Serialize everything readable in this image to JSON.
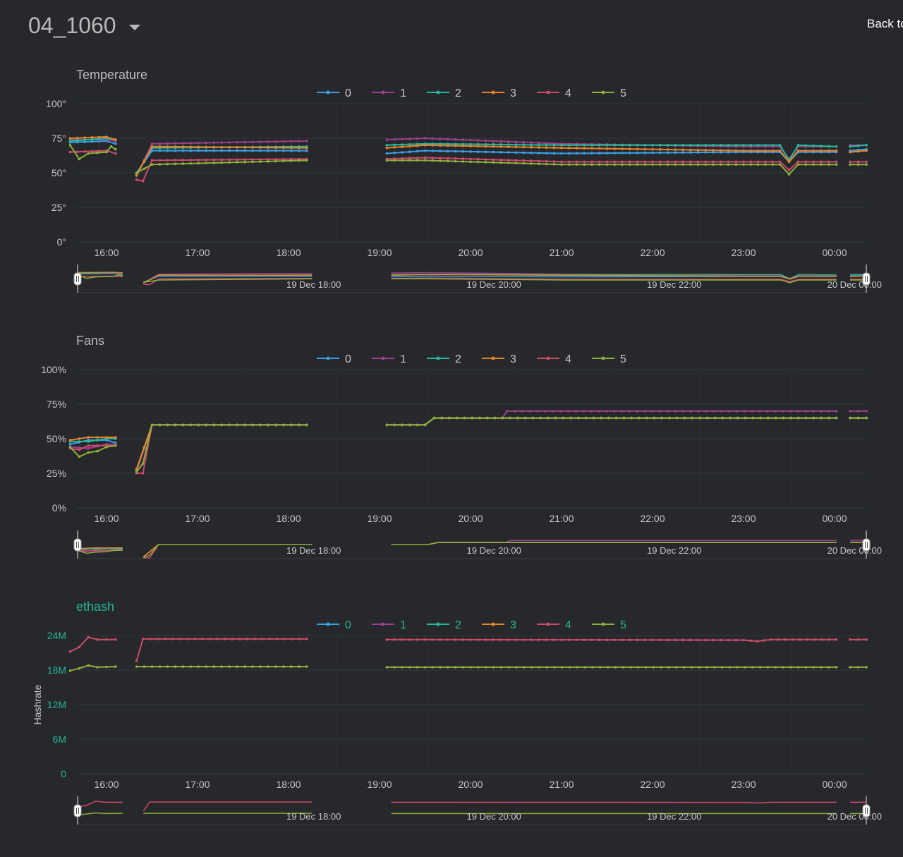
{
  "header": {
    "title": "04_1060",
    "back_label": "Back to"
  },
  "colors": {
    "background": "#26282c",
    "grid": "#33363b",
    "accent_ethash": "#26b89a",
    "title": "#b9b9b9"
  },
  "chart_data": [
    {
      "type": "line",
      "title": "Temperature",
      "xlabel": "",
      "ylabel": "",
      "y_ticks": [
        "100°",
        "75°",
        "50°",
        "25°",
        "0°"
      ],
      "ylim": [
        0,
        100
      ],
      "x_ticks": [
        "16:00",
        "17:00",
        "18:00",
        "19:00",
        "20:00",
        "21:00",
        "22:00",
        "23:00",
        "00:00"
      ],
      "navigator_labels": [
        "19 Dec 18:00",
        "19 Dec 20:00",
        "19 Dec 22:00",
        "20 Dec 00:00"
      ],
      "legend": [
        "0",
        "1",
        "2",
        "3",
        "4",
        "5"
      ],
      "x_range_hours": [
        15.6,
        24.35
      ],
      "gaps": [
        [
          16.1,
          16.33
        ],
        [
          18.2,
          19.08
        ],
        [
          24.02,
          24.17
        ]
      ],
      "series": [
        {
          "name": "0",
          "color": "#3aa0e8",
          "values": [
            [
              15.6,
              72
            ],
            [
              16.0,
              73
            ],
            [
              16.1,
              71
            ],
            [
              16.33,
              50
            ],
            [
              16.5,
              66
            ],
            [
              18.2,
              66
            ],
            [
              19.08,
              64
            ],
            [
              19.5,
              66
            ],
            [
              21.0,
              64
            ],
            [
              23.0,
              65
            ],
            [
              23.4,
              65
            ],
            [
              23.5,
              58
            ],
            [
              23.6,
              65
            ],
            [
              24.02,
              65
            ],
            [
              24.17,
              66
            ],
            [
              24.35,
              67
            ]
          ]
        },
        {
          "name": "1",
          "color": "#9c3f8e",
          "values": [
            [
              15.6,
              74
            ],
            [
              16.0,
              74
            ],
            [
              16.1,
              73
            ],
            [
              16.33,
              48
            ],
            [
              16.5,
              71
            ],
            [
              18.2,
              73
            ],
            [
              19.08,
              74
            ],
            [
              19.5,
              75
            ],
            [
              21.0,
              71
            ],
            [
              23.0,
              69
            ],
            [
              23.4,
              69
            ],
            [
              23.5,
              60
            ],
            [
              23.6,
              69
            ],
            [
              24.02,
              69
            ],
            [
              24.17,
              70
            ],
            [
              24.35,
              70
            ]
          ]
        },
        {
          "name": "2",
          "color": "#26b89a",
          "values": [
            [
              15.6,
              73
            ],
            [
              16.0,
              75
            ],
            [
              16.1,
              74
            ],
            [
              16.33,
              49
            ],
            [
              16.5,
              68
            ],
            [
              18.2,
              69
            ],
            [
              19.08,
              70
            ],
            [
              19.5,
              71
            ],
            [
              21.0,
              70
            ],
            [
              23.0,
              70
            ],
            [
              23.4,
              70
            ],
            [
              23.5,
              59
            ],
            [
              23.6,
              70
            ],
            [
              24.02,
              69
            ],
            [
              24.17,
              69
            ],
            [
              24.35,
              70
            ]
          ]
        },
        {
          "name": "3",
          "color": "#e3842d",
          "values": [
            [
              15.6,
              75
            ],
            [
              16.0,
              76
            ],
            [
              16.1,
              74
            ],
            [
              16.33,
              48
            ],
            [
              16.5,
              69
            ],
            [
              18.2,
              68
            ],
            [
              19.08,
              68
            ],
            [
              19.5,
              70
            ],
            [
              21.0,
              68
            ],
            [
              23.0,
              66
            ],
            [
              23.4,
              66
            ],
            [
              23.5,
              58
            ],
            [
              23.6,
              66
            ],
            [
              24.02,
              66
            ],
            [
              24.17,
              65
            ],
            [
              24.35,
              66
            ]
          ]
        },
        {
          "name": "4",
          "color": "#cc4a6a",
          "values": [
            [
              15.6,
              65
            ],
            [
              16.0,
              66
            ],
            [
              16.1,
              64
            ],
            [
              16.33,
              45
            ],
            [
              16.4,
              44
            ],
            [
              16.5,
              59
            ],
            [
              18.2,
              60
            ],
            [
              19.08,
              60
            ],
            [
              19.5,
              61
            ],
            [
              21.0,
              58
            ],
            [
              23.0,
              58
            ],
            [
              23.4,
              58
            ],
            [
              23.5,
              52
            ],
            [
              23.6,
              58
            ],
            [
              24.02,
              58
            ],
            [
              24.17,
              58
            ],
            [
              24.35,
              58
            ]
          ]
        },
        {
          "name": "5",
          "color": "#8db038",
          "values": [
            [
              15.6,
              70
            ],
            [
              15.7,
              60
            ],
            [
              15.8,
              64
            ],
            [
              16.0,
              65
            ],
            [
              16.05,
              69
            ],
            [
              16.1,
              67
            ],
            [
              16.33,
              50
            ],
            [
              16.5,
              56
            ],
            [
              18.2,
              59
            ],
            [
              19.08,
              59
            ],
            [
              19.5,
              59
            ],
            [
              21.0,
              56
            ],
            [
              23.0,
              56
            ],
            [
              23.4,
              56
            ],
            [
              23.5,
              49
            ],
            [
              23.6,
              56
            ],
            [
              24.02,
              56
            ],
            [
              24.17,
              56
            ],
            [
              24.35,
              56
            ]
          ]
        }
      ]
    },
    {
      "type": "line",
      "title": "Fans",
      "xlabel": "",
      "ylabel": "",
      "y_ticks": [
        "100%",
        "75%",
        "50%",
        "25%",
        "0%"
      ],
      "ylim": [
        0,
        100
      ],
      "x_ticks": [
        "16:00",
        "17:00",
        "18:00",
        "19:00",
        "20:00",
        "21:00",
        "22:00",
        "23:00",
        "00:00"
      ],
      "navigator_labels": [
        "19 Dec 18:00",
        "19 Dec 20:00",
        "19 Dec 22:00",
        "20 Dec 00:00"
      ],
      "legend": [
        "0",
        "1",
        "2",
        "3",
        "4",
        "5"
      ],
      "x_range_hours": [
        15.6,
        24.35
      ],
      "gaps": [
        [
          16.1,
          16.33
        ],
        [
          18.2,
          19.08
        ],
        [
          24.02,
          24.17
        ]
      ],
      "series": [
        {
          "name": "0",
          "color": "#3aa0e8",
          "values": [
            [
              15.6,
              46
            ],
            [
              15.8,
              49
            ],
            [
              16.0,
              49
            ],
            [
              16.1,
              47
            ],
            [
              16.33,
              27
            ],
            [
              16.5,
              60
            ],
            [
              18.2,
              60
            ],
            [
              19.08,
              60
            ],
            [
              19.5,
              60
            ],
            [
              19.6,
              65
            ],
            [
              24.02,
              65
            ],
            [
              24.17,
              65
            ],
            [
              24.35,
              65
            ]
          ]
        },
        {
          "name": "1",
          "color": "#9c3f8e",
          "values": [
            [
              15.6,
              44
            ],
            [
              15.8,
              43
            ],
            [
              16.0,
              46
            ],
            [
              16.1,
              46
            ],
            [
              16.33,
              26
            ],
            [
              16.5,
              60
            ],
            [
              18.2,
              60
            ],
            [
              19.08,
              60
            ],
            [
              19.5,
              60
            ],
            [
              19.6,
              65
            ],
            [
              20.35,
              65
            ],
            [
              20.4,
              70
            ],
            [
              24.02,
              70
            ],
            [
              24.17,
              70
            ],
            [
              24.35,
              70
            ]
          ]
        },
        {
          "name": "2",
          "color": "#26b89a",
          "values": [
            [
              15.6,
              48
            ],
            [
              15.8,
              48
            ],
            [
              16.0,
              50
            ],
            [
              16.1,
              50
            ],
            [
              16.33,
              28
            ],
            [
              16.5,
              60
            ],
            [
              18.2,
              60
            ],
            [
              19.08,
              60
            ],
            [
              19.5,
              60
            ],
            [
              19.6,
              65
            ],
            [
              24.02,
              65
            ],
            [
              24.17,
              65
            ],
            [
              24.35,
              65
            ]
          ]
        },
        {
          "name": "3",
          "color": "#e3842d",
          "values": [
            [
              15.6,
              49
            ],
            [
              15.8,
              51
            ],
            [
              16.0,
              51
            ],
            [
              16.1,
              51
            ],
            [
              16.33,
              28
            ],
            [
              16.5,
              60
            ],
            [
              18.2,
              60
            ],
            [
              19.08,
              60
            ],
            [
              19.5,
              60
            ],
            [
              19.6,
              65
            ],
            [
              24.02,
              65
            ],
            [
              24.17,
              65
            ],
            [
              24.35,
              65
            ]
          ]
        },
        {
          "name": "4",
          "color": "#cc4a6a",
          "values": [
            [
              15.6,
              43
            ],
            [
              15.7,
              42
            ],
            [
              15.8,
              45
            ],
            [
              16.0,
              45
            ],
            [
              16.1,
              45
            ],
            [
              16.33,
              25
            ],
            [
              16.4,
              25
            ],
            [
              16.5,
              60
            ],
            [
              18.2,
              60
            ],
            [
              19.08,
              60
            ],
            [
              19.5,
              60
            ],
            [
              19.6,
              65
            ],
            [
              24.02,
              65
            ],
            [
              24.17,
              65
            ],
            [
              24.35,
              65
            ]
          ]
        },
        {
          "name": "5",
          "color": "#8db038",
          "values": [
            [
              15.6,
              44
            ],
            [
              15.7,
              37
            ],
            [
              15.8,
              40
            ],
            [
              15.9,
              41
            ],
            [
              16.0,
              44
            ],
            [
              16.1,
              45
            ],
            [
              16.33,
              26
            ],
            [
              16.4,
              32
            ],
            [
              16.5,
              60
            ],
            [
              18.2,
              60
            ],
            [
              19.08,
              60
            ],
            [
              19.5,
              60
            ],
            [
              19.6,
              65
            ],
            [
              24.02,
              65
            ],
            [
              24.17,
              65
            ],
            [
              24.35,
              65
            ]
          ]
        }
      ]
    },
    {
      "type": "line",
      "title": "ethash",
      "xlabel": "",
      "ylabel": "Hashrate",
      "y_ticks": [
        "24M",
        "18M",
        "12M",
        "6M",
        "0"
      ],
      "ylim": [
        0,
        24
      ],
      "x_ticks": [
        "16:00",
        "17:00",
        "18:00",
        "19:00",
        "20:00",
        "21:00",
        "22:00",
        "23:00",
        "00:00"
      ],
      "navigator_labels": [
        "19 Dec 18:00",
        "19 Dec 20:00",
        "19 Dec 22:00",
        "20 Dec 00:00"
      ],
      "legend": [
        "0",
        "1",
        "2",
        "3",
        "4",
        "5"
      ],
      "x_range_hours": [
        15.6,
        24.35
      ],
      "gaps": [
        [
          16.1,
          16.33
        ],
        [
          18.2,
          19.08
        ],
        [
          24.02,
          24.17
        ]
      ],
      "series": [
        {
          "name": "0",
          "color": "#3aa0e8",
          "values": []
        },
        {
          "name": "1",
          "color": "#9c3f8e",
          "values": []
        },
        {
          "name": "2",
          "color": "#26b89a",
          "values": []
        },
        {
          "name": "3",
          "color": "#e3842d",
          "values": []
        },
        {
          "name": "4",
          "color": "#cc4a6a",
          "values": [
            [
              15.6,
              21.2
            ],
            [
              15.7,
              22.0
            ],
            [
              15.8,
              23.7
            ],
            [
              15.9,
              23.3
            ],
            [
              16.1,
              23.3
            ],
            [
              16.33,
              19.6
            ],
            [
              16.4,
              23.4
            ],
            [
              18.2,
              23.4
            ],
            [
              19.08,
              23.3
            ],
            [
              23.0,
              23.2
            ],
            [
              23.15,
              23.0
            ],
            [
              23.3,
              23.3
            ],
            [
              24.02,
              23.3
            ],
            [
              24.17,
              23.3
            ],
            [
              24.35,
              23.3
            ]
          ]
        },
        {
          "name": "5",
          "color": "#8db038",
          "values": [
            [
              15.6,
              17.9
            ],
            [
              15.7,
              18.3
            ],
            [
              15.8,
              18.8
            ],
            [
              15.9,
              18.5
            ],
            [
              16.1,
              18.6
            ],
            [
              16.33,
              18.6
            ],
            [
              18.2,
              18.6
            ],
            [
              19.08,
              18.5
            ],
            [
              24.02,
              18.5
            ],
            [
              24.17,
              18.5
            ],
            [
              24.35,
              18.5
            ]
          ]
        }
      ]
    }
  ]
}
